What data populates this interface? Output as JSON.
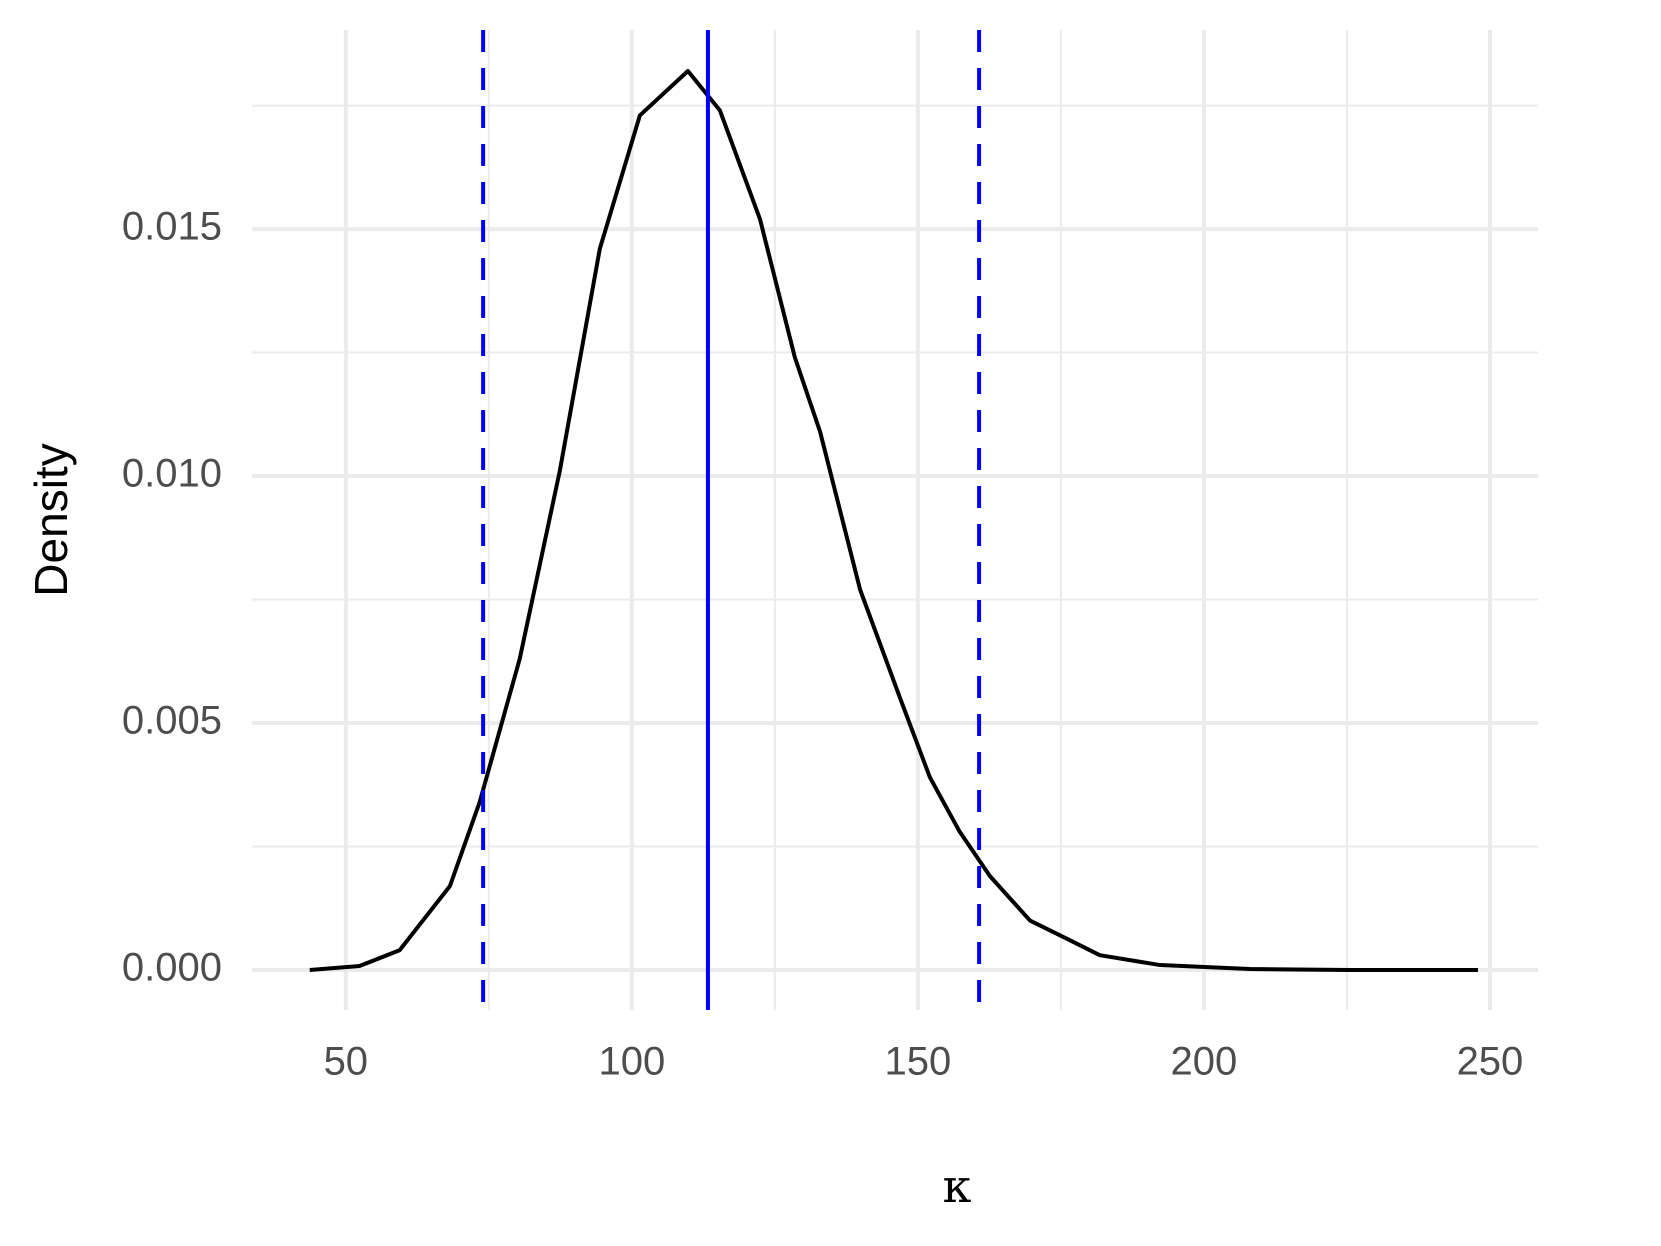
{
  "chart_data": {
    "type": "line",
    "x_label": "κ",
    "y_label": "Density",
    "x": [
      43.7,
      52.4,
      59.4,
      68.2,
      73.4,
      80.4,
      87.4,
      94.4,
      101.4,
      109.8,
      115.4,
      122.4,
      128.5,
      132.9,
      139.9,
      146.9,
      152.1,
      157.3,
      162.6,
      169.6,
      176.6,
      181.8,
      192.3,
      208.0,
      225.5,
      247.9
    ],
    "series": [
      {
        "color": "#000000",
        "values": [
          0,
          8e-05,
          0.0004,
          0.0017,
          0.0034,
          0.0063,
          0.0101,
          0.0146,
          0.0173,
          0.0182,
          0.0174,
          0.0152,
          0.0124,
          0.0109,
          0.0077,
          0.0055,
          0.0039,
          0.0028,
          0.0019,
          0.001,
          0.0006,
          0.0003,
          0.0001,
          2e-05,
          0,
          0
        ]
      }
    ],
    "vlines": [
      {
        "value": 113.3,
        "style": "solid"
      },
      {
        "value": 74.0,
        "style": "dashed"
      },
      {
        "value": 160.7,
        "style": "dashed"
      }
    ],
    "vline_color": "#0000ff",
    "xlim": [
      33.6,
      258.4
    ],
    "ylim": [
      -0.00081,
      0.01903
    ],
    "xticks": [
      50,
      100,
      150,
      200,
      250
    ],
    "xminor": [
      75,
      125,
      175,
      225
    ],
    "yticks": [
      {
        "value": 0,
        "label": "0.000"
      },
      {
        "value": 0.005,
        "label": "0.005"
      },
      {
        "value": 0.01,
        "label": "0.010"
      },
      {
        "value": 0.015,
        "label": "0.015"
      }
    ],
    "yminor": [
      0.0025,
      0.0075,
      0.0125,
      0.0175
    ],
    "grid": true
  }
}
